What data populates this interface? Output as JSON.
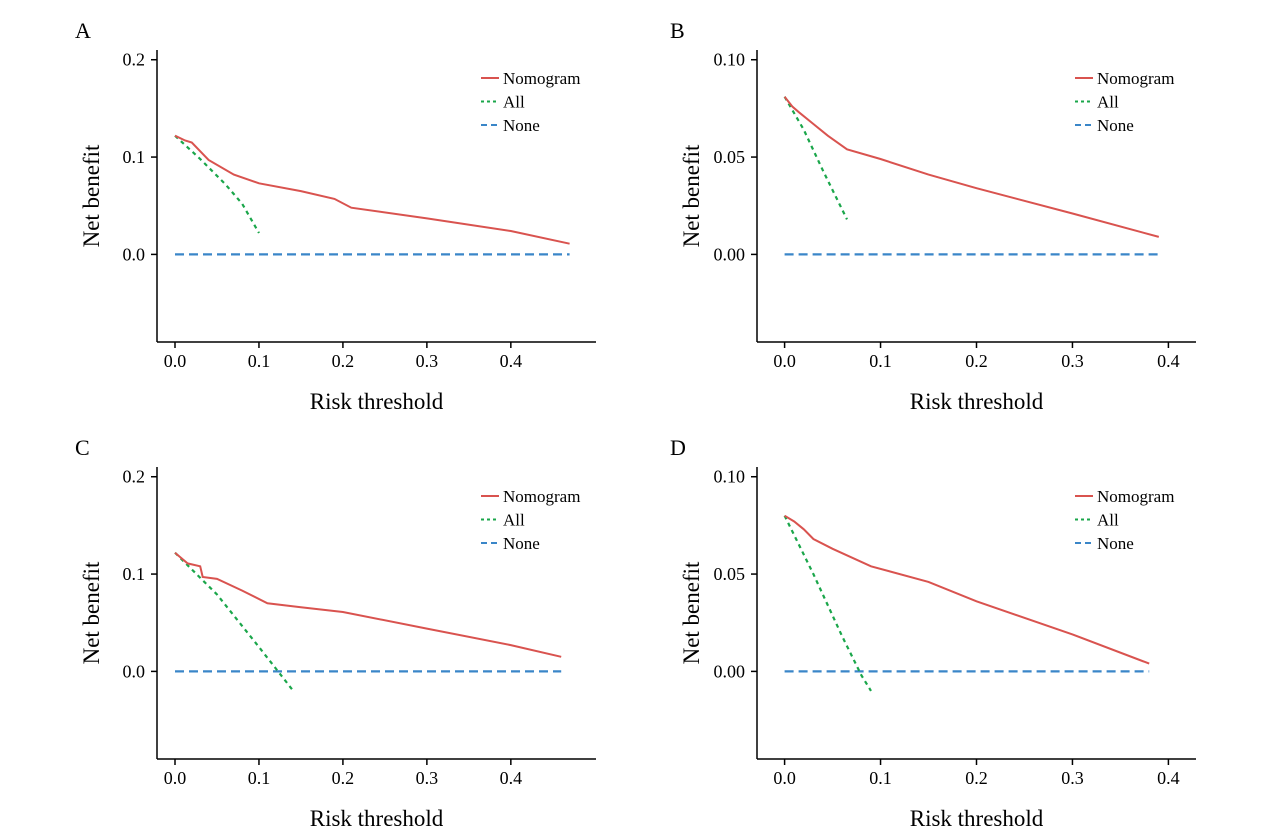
{
  "colors": {
    "nomogram": "#d9534f",
    "all": "#1aa64a",
    "none": "#3a86c8",
    "axis": "#000000"
  },
  "chart_data": [
    {
      "panel": "A",
      "type": "line",
      "xlabel": "Risk threshold",
      "ylabel": "Net benefit",
      "xlim": [
        0,
        0.48
      ],
      "ylim": [
        -0.09,
        0.21
      ],
      "xticks": [
        0.0,
        0.1,
        0.2,
        0.3,
        0.4
      ],
      "xtick_labels": [
        "0.0",
        "0.1",
        "0.2",
        "0.3",
        "0.4"
      ],
      "yticks": [
        0.0,
        0.1,
        0.2
      ],
      "ytick_labels": [
        "0.0",
        "0.1",
        "0.2"
      ],
      "legend": "top-right",
      "series": [
        {
          "name": "Nomogram",
          "style": "solid",
          "x": [
            0.0,
            0.012,
            0.02,
            0.04,
            0.07,
            0.1,
            0.15,
            0.19,
            0.21,
            0.3,
            0.4,
            0.47
          ],
          "y": [
            0.122,
            0.117,
            0.115,
            0.097,
            0.082,
            0.073,
            0.065,
            0.057,
            0.048,
            0.037,
            0.024,
            0.011
          ]
        },
        {
          "name": "All",
          "style": "dotted",
          "x": [
            0.0,
            0.03,
            0.06,
            0.08,
            0.1
          ],
          "y": [
            0.122,
            0.098,
            0.072,
            0.052,
            0.022
          ]
        },
        {
          "name": "None",
          "style": "dashed",
          "x": [
            0.0,
            0.47
          ],
          "y": [
            0.0,
            0.0
          ]
        }
      ]
    },
    {
      "panel": "B",
      "type": "line",
      "xlabel": "Risk threshold",
      "ylabel": "Net benefit",
      "xlim": [
        -0.01,
        0.41
      ],
      "ylim": [
        -0.045,
        0.105
      ],
      "xticks": [
        0.0,
        0.1,
        0.2,
        0.3,
        0.4
      ],
      "xtick_labels": [
        "0.0",
        "0.1",
        "0.2",
        "0.3",
        "0.4"
      ],
      "yticks": [
        0.0,
        0.05,
        0.1
      ],
      "ytick_labels": [
        "0.00",
        "0.05",
        "0.10"
      ],
      "legend": "top-right",
      "series": [
        {
          "name": "Nomogram",
          "style": "solid",
          "x": [
            0.0,
            0.008,
            0.015,
            0.03,
            0.045,
            0.065,
            0.1,
            0.15,
            0.2,
            0.3,
            0.39
          ],
          "y": [
            0.081,
            0.076,
            0.073,
            0.067,
            0.061,
            0.054,
            0.049,
            0.041,
            0.034,
            0.021,
            0.009
          ]
        },
        {
          "name": "All",
          "style": "dotted",
          "x": [
            0.0,
            0.02,
            0.04,
            0.065
          ],
          "y": [
            0.081,
            0.064,
            0.043,
            0.018
          ]
        },
        {
          "name": "None",
          "style": "dashed",
          "x": [
            0.0,
            0.39
          ],
          "y": [
            0.0,
            0.0
          ]
        }
      ]
    },
    {
      "panel": "C",
      "type": "line",
      "xlabel": "Risk threshold",
      "ylabel": "Net benefit",
      "xlim": [
        0,
        0.48
      ],
      "ylim": [
        -0.09,
        0.21
      ],
      "xticks": [
        0.0,
        0.1,
        0.2,
        0.3,
        0.4
      ],
      "xtick_labels": [
        "0.0",
        "0.1",
        "0.2",
        "0.3",
        "0.4"
      ],
      "yticks": [
        0.0,
        0.1,
        0.2
      ],
      "ytick_labels": [
        "0.0",
        "0.1",
        "0.2"
      ],
      "legend": "top-right",
      "series": [
        {
          "name": "Nomogram",
          "style": "solid",
          "x": [
            0.0,
            0.015,
            0.03,
            0.033,
            0.05,
            0.08,
            0.11,
            0.15,
            0.2,
            0.3,
            0.4,
            0.46
          ],
          "y": [
            0.122,
            0.111,
            0.108,
            0.097,
            0.095,
            0.083,
            0.07,
            0.066,
            0.061,
            0.044,
            0.027,
            0.015
          ]
        },
        {
          "name": "All",
          "style": "dotted",
          "x": [
            0.0,
            0.05,
            0.1,
            0.12,
            0.14
          ],
          "y": [
            0.122,
            0.079,
            0.025,
            0.003,
            -0.019
          ]
        },
        {
          "name": "None",
          "style": "dashed",
          "x": [
            0.0,
            0.46
          ],
          "y": [
            0.0,
            0.0
          ]
        }
      ]
    },
    {
      "panel": "D",
      "type": "line",
      "xlabel": "Risk threshold",
      "ylabel": "Net benefit",
      "xlim": [
        -0.01,
        0.41
      ],
      "ylim": [
        -0.045,
        0.105
      ],
      "xticks": [
        0.0,
        0.1,
        0.2,
        0.3,
        0.4
      ],
      "xtick_labels": [
        "0.0",
        "0.1",
        "0.2",
        "0.3",
        "0.4"
      ],
      "yticks": [
        0.0,
        0.05,
        0.1
      ],
      "ytick_labels": [
        "0.00",
        "0.05",
        "0.10"
      ],
      "legend": "top-right",
      "series": [
        {
          "name": "Nomogram",
          "style": "solid",
          "x": [
            0.0,
            0.01,
            0.02,
            0.03,
            0.05,
            0.09,
            0.15,
            0.2,
            0.3,
            0.38
          ],
          "y": [
            0.08,
            0.077,
            0.073,
            0.068,
            0.063,
            0.054,
            0.046,
            0.036,
            0.019,
            0.004
          ]
        },
        {
          "name": "All",
          "style": "dotted",
          "x": [
            0.0,
            0.03,
            0.06,
            0.08,
            0.09
          ],
          "y": [
            0.08,
            0.05,
            0.018,
            -0.002,
            -0.01
          ]
        },
        {
          "name": "None",
          "style": "dashed",
          "x": [
            0.0,
            0.38
          ],
          "y": [
            0.0,
            0.0
          ]
        }
      ]
    }
  ]
}
